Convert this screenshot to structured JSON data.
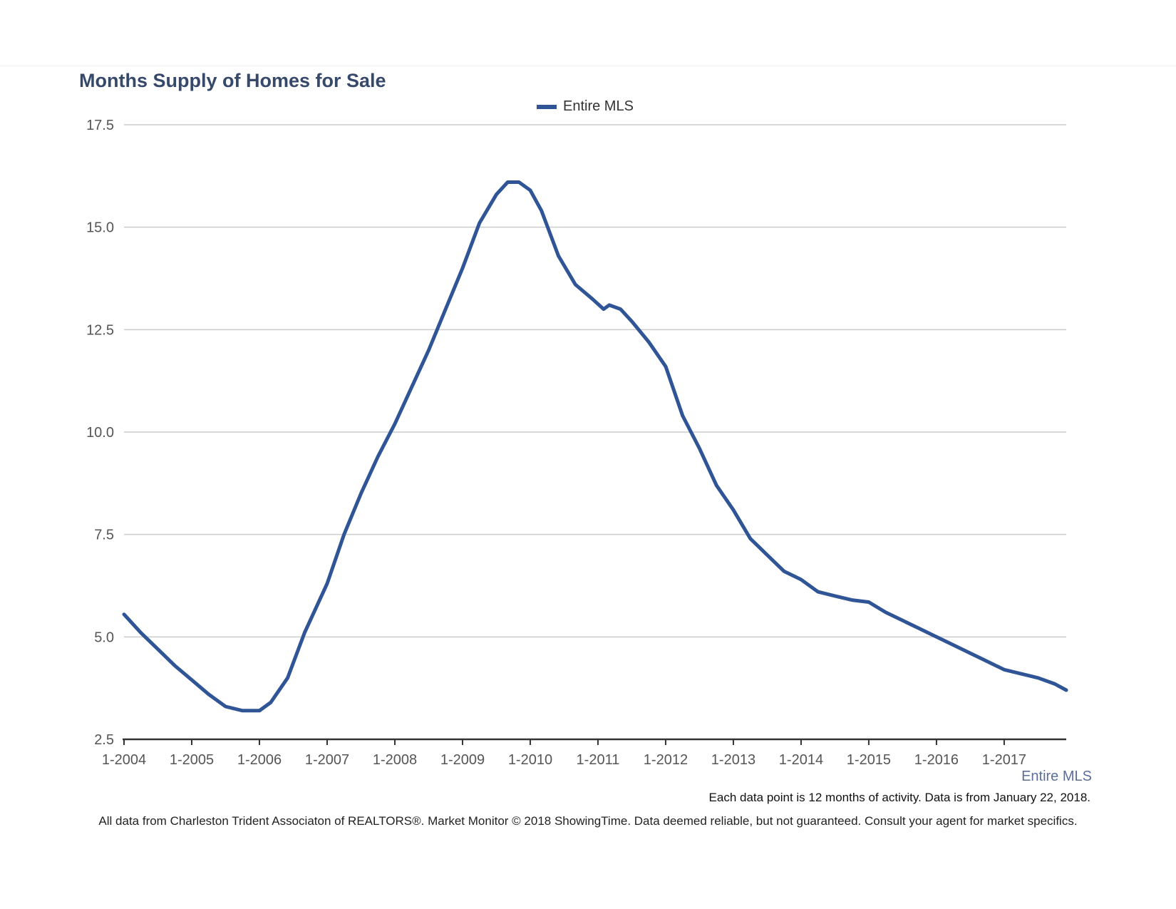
{
  "header": {
    "title": "Months Supply of Homes for Sale"
  },
  "legend": {
    "label": "Entire MLS"
  },
  "series_tag": "Entire MLS",
  "note": "Each data point is 12 months of activity. Data is from January 22, 2018.",
  "footer": "All data from Charleston Trident Associaton of REALTORS®. Market Monitor © 2018 ShowingTime. Data deemed reliable, but not guaranteed. Consult your agent for market specifics.",
  "colors": {
    "series": "#2f5597",
    "title": "#36496b",
    "grid": "#cccccc",
    "axis": "#333333"
  },
  "chart_data": {
    "type": "line",
    "title": "Months Supply of Homes for Sale",
    "xlabel": "",
    "ylabel": "",
    "ylim": [
      2.5,
      17.5
    ],
    "yticks": [
      "2.5",
      "5.0",
      "7.5",
      "10.0",
      "12.5",
      "15.0",
      "17.5"
    ],
    "xticks": [
      "1-2004",
      "1-2005",
      "1-2006",
      "1-2007",
      "1-2008",
      "1-2009",
      "1-2010",
      "1-2011",
      "1-2012",
      "1-2013",
      "1-2014",
      "1-2015",
      "1-2016",
      "1-2017"
    ],
    "xrange": [
      "2004-01",
      "2017-12"
    ],
    "grid": true,
    "legend_position": "top-center",
    "series": [
      {
        "name": "Entire MLS",
        "points": [
          [
            "2004-01",
            5.55
          ],
          [
            "2004-04",
            5.1
          ],
          [
            "2004-07",
            4.7
          ],
          [
            "2004-10",
            4.3
          ],
          [
            "2005-01",
            3.95
          ],
          [
            "2005-04",
            3.6
          ],
          [
            "2005-07",
            3.3
          ],
          [
            "2005-10",
            3.2
          ],
          [
            "2006-01",
            3.2
          ],
          [
            "2006-03",
            3.4
          ],
          [
            "2006-06",
            4.0
          ],
          [
            "2006-09",
            5.1
          ],
          [
            "2007-01",
            6.3
          ],
          [
            "2007-04",
            7.5
          ],
          [
            "2007-07",
            8.5
          ],
          [
            "2007-10",
            9.4
          ],
          [
            "2008-01",
            10.2
          ],
          [
            "2008-04",
            11.1
          ],
          [
            "2008-07",
            12.0
          ],
          [
            "2008-10",
            13.0
          ],
          [
            "2009-01",
            14.0
          ],
          [
            "2009-04",
            15.1
          ],
          [
            "2009-07",
            15.8
          ],
          [
            "2009-09",
            16.1
          ],
          [
            "2009-11",
            16.1
          ],
          [
            "2010-01",
            15.9
          ],
          [
            "2010-03",
            15.4
          ],
          [
            "2010-06",
            14.3
          ],
          [
            "2010-09",
            13.6
          ],
          [
            "2010-12",
            13.25
          ],
          [
            "2011-02",
            13.0
          ],
          [
            "2011-03",
            13.1
          ],
          [
            "2011-05",
            13.0
          ],
          [
            "2011-07",
            12.7
          ],
          [
            "2011-10",
            12.2
          ],
          [
            "2012-01",
            11.6
          ],
          [
            "2012-04",
            10.4
          ],
          [
            "2012-07",
            9.6
          ],
          [
            "2012-10",
            8.7
          ],
          [
            "2013-01",
            8.1
          ],
          [
            "2013-04",
            7.4
          ],
          [
            "2013-07",
            7.0
          ],
          [
            "2013-10",
            6.6
          ],
          [
            "2014-01",
            6.4
          ],
          [
            "2014-04",
            6.1
          ],
          [
            "2014-07",
            6.0
          ],
          [
            "2014-10",
            5.9
          ],
          [
            "2015-01",
            5.85
          ],
          [
            "2015-04",
            5.6
          ],
          [
            "2015-07",
            5.4
          ],
          [
            "2015-10",
            5.2
          ],
          [
            "2016-01",
            5.0
          ],
          [
            "2016-04",
            4.8
          ],
          [
            "2016-07",
            4.6
          ],
          [
            "2016-10",
            4.4
          ],
          [
            "2017-01",
            4.2
          ],
          [
            "2017-04",
            4.1
          ],
          [
            "2017-07",
            4.0
          ],
          [
            "2017-10",
            3.85
          ],
          [
            "2017-12",
            3.7
          ]
        ]
      }
    ]
  }
}
